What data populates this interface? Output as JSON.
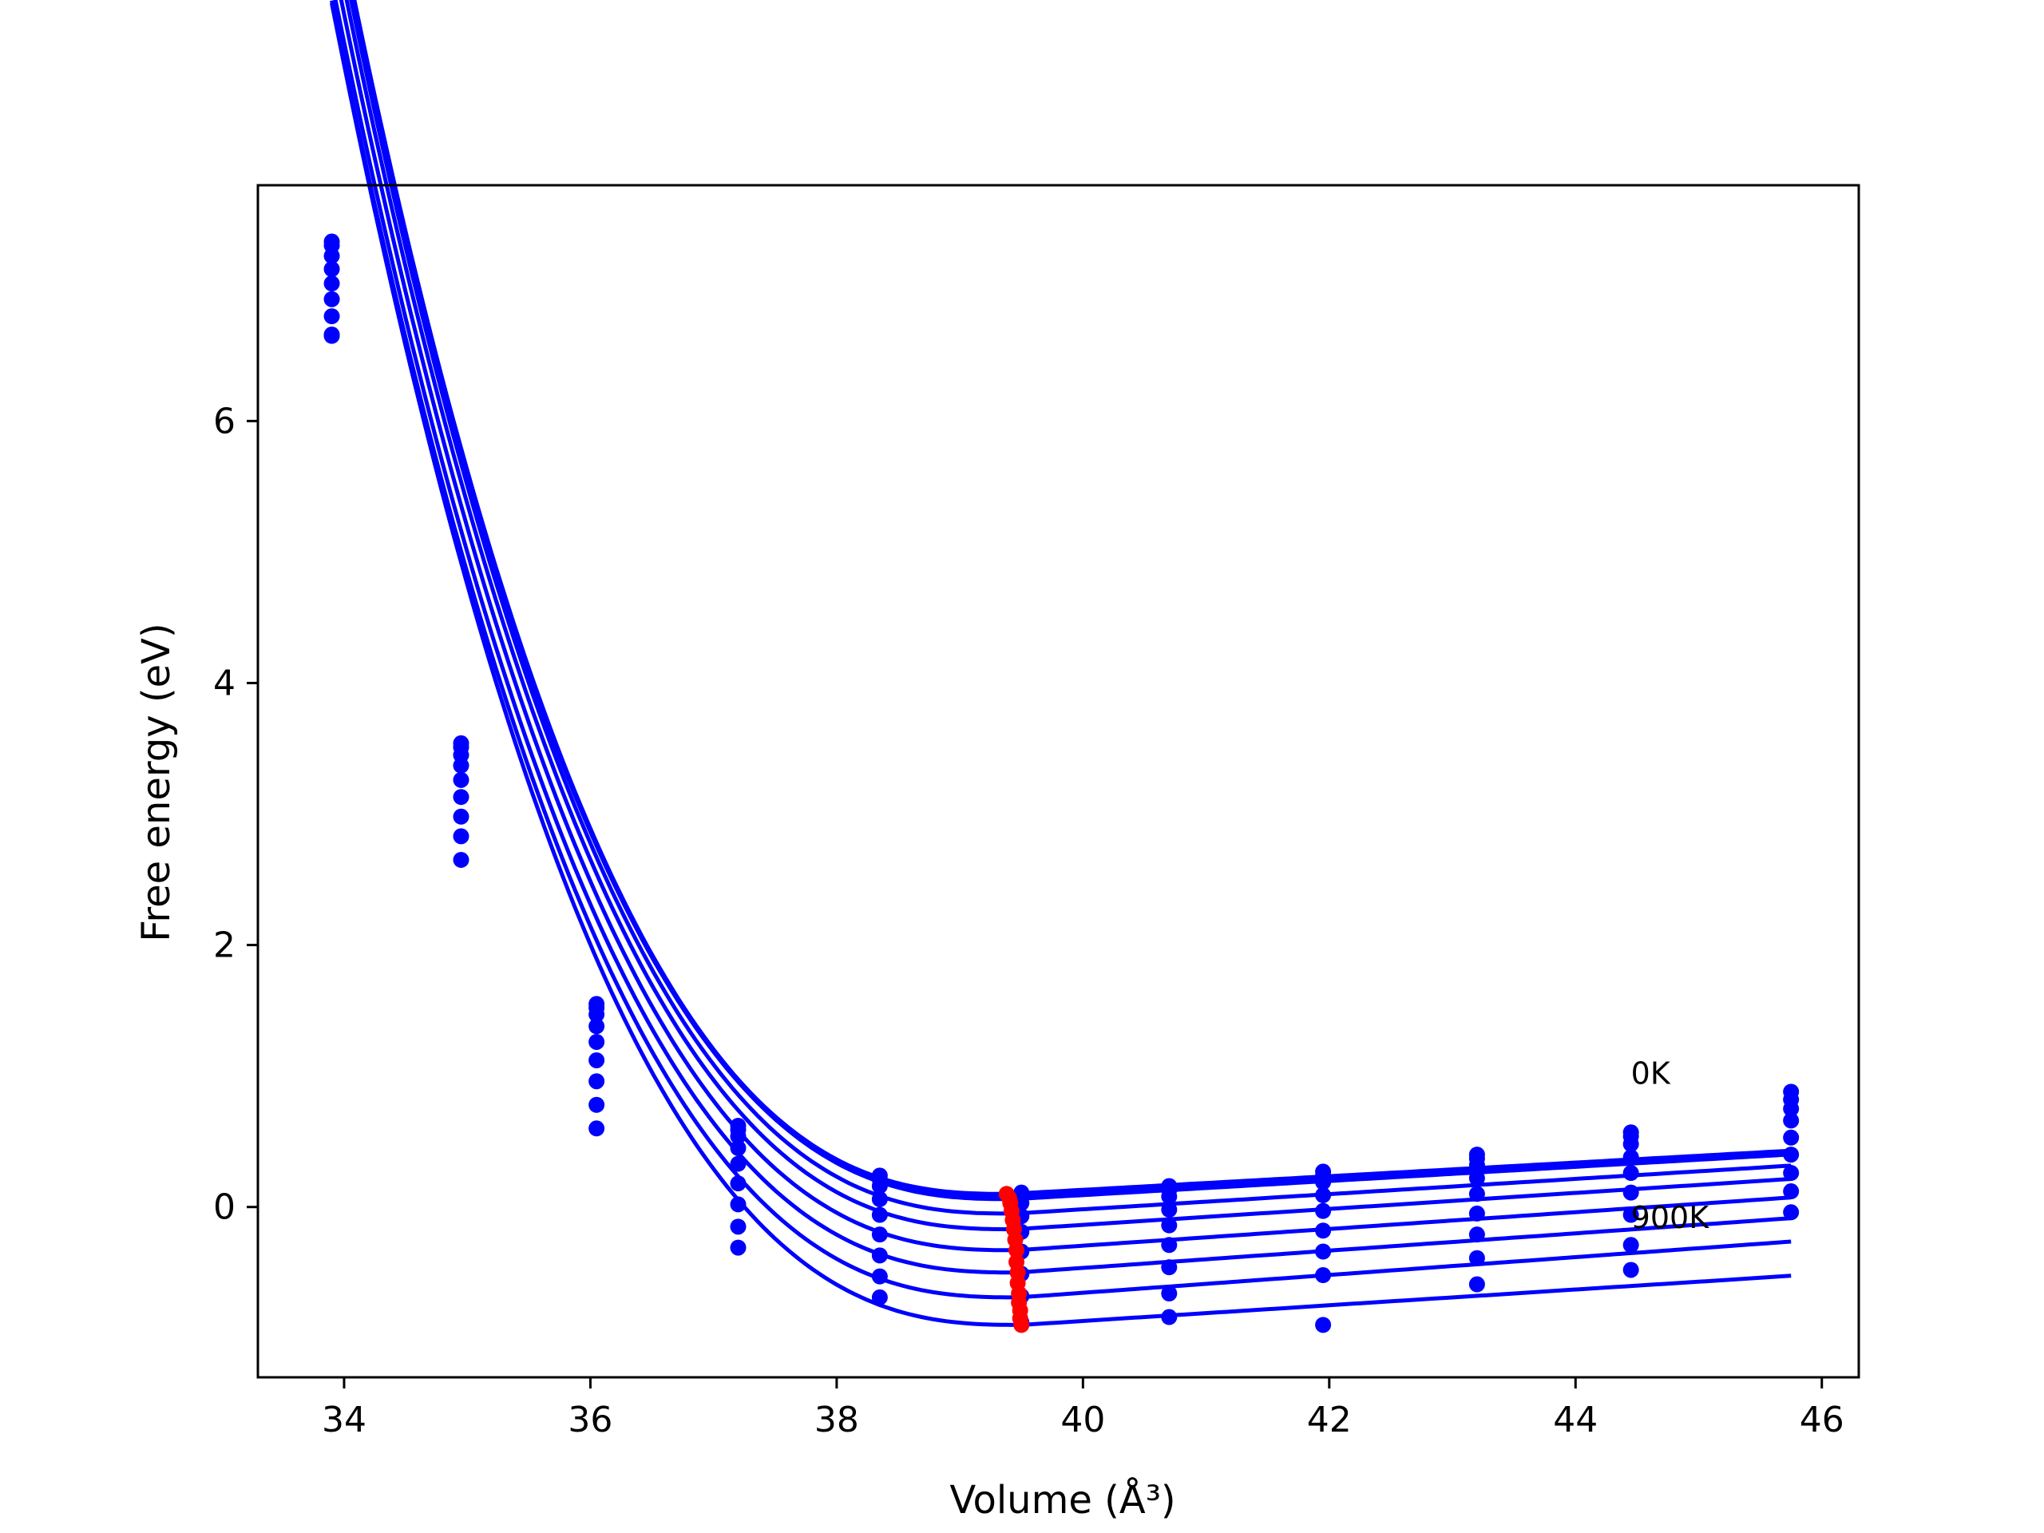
{
  "chart_data": {
    "type": "line",
    "title": "",
    "xlabel": "Volume (Å³)",
    "ylabel": "Free energy (eV)",
    "xlim": [
      33.3,
      46.3
    ],
    "ylim": [
      -1.3,
      7.8
    ],
    "xticks": [
      "34",
      "36",
      "38",
      "40",
      "42",
      "44",
      "46"
    ],
    "yticks": [
      "0",
      "2",
      "4",
      "6"
    ],
    "grid": false,
    "legend": "none",
    "colors": {
      "fit": "#0000ff",
      "points": "#0000ff",
      "minima": "#ff0000",
      "frame": "#000000"
    },
    "annotations": [
      "0K",
      "900K"
    ],
    "volumes": [
      33.9,
      34.95,
      36.05,
      37.2,
      38.35,
      39.5,
      40.7,
      41.95,
      43.2,
      44.45,
      45.75
    ],
    "series": [
      {
        "x": [
          33.9,
          34.95,
          36.05,
          37.2,
          38.35,
          39.5,
          40.7,
          41.95,
          43.2,
          44.45,
          45.75
        ],
        "y": [
          7.37,
          3.54,
          1.55,
          0.62,
          0.24,
          0.11,
          0.16,
          0.27,
          0.4,
          0.57,
          0.88
        ]
      },
      {
        "x": [
          33.9,
          34.95,
          36.05,
          37.2,
          38.35,
          39.5,
          40.7,
          41.95,
          43.2,
          44.45,
          45.75
        ],
        "y": [
          7.34,
          3.51,
          1.52,
          0.59,
          0.21,
          0.08,
          0.13,
          0.24,
          0.37,
          0.54,
          0.82
        ]
      },
      {
        "x": [
          33.9,
          34.95,
          36.05,
          37.2,
          38.35,
          39.5,
          40.7,
          41.95,
          43.2,
          44.45,
          45.75
        ],
        "y": [
          7.26,
          3.45,
          1.47,
          0.54,
          0.16,
          0.03,
          0.08,
          0.19,
          0.32,
          0.48,
          0.75
        ]
      },
      {
        "x": [
          33.9,
          34.95,
          36.05,
          37.2,
          38.35,
          39.5,
          40.7,
          41.95,
          43.2,
          44.45,
          45.75
        ],
        "y": [
          7.16,
          3.37,
          1.38,
          0.45,
          0.06,
          -0.07,
          -0.02,
          0.09,
          0.22,
          0.38,
          0.66
        ]
      },
      {
        "x": [
          33.9,
          34.95,
          36.05,
          37.2,
          38.35,
          39.5,
          40.7,
          41.95,
          43.2,
          44.45,
          45.75
        ],
        "y": [
          7.05,
          3.26,
          1.26,
          0.33,
          -0.06,
          -0.19,
          -0.14,
          -0.03,
          0.1,
          0.26,
          0.53
        ]
      },
      {
        "x": [
          33.9,
          34.95,
          36.05,
          37.2,
          38.35,
          39.5,
          40.7,
          41.95,
          43.2,
          44.45,
          45.75
        ],
        "y": [
          6.93,
          3.13,
          1.12,
          0.18,
          -0.21,
          -0.34,
          -0.29,
          -0.18,
          -0.05,
          0.11,
          0.4
        ]
      },
      {
        "x": [
          33.9,
          34.95,
          36.05,
          37.2,
          38.35,
          39.5,
          40.7,
          41.95,
          43.2,
          44.45,
          45.75
        ],
        "y": [
          6.8,
          2.98,
          0.96,
          0.02,
          -0.37,
          -0.51,
          -0.46,
          -0.34,
          -0.21,
          -0.06,
          0.26
        ]
      },
      {
        "x": [
          33.9,
          34.95,
          36.05,
          37.2,
          38.35,
          39.5,
          40.7,
          41.95,
          43.2,
          44.45,
          45.75
        ],
        "y": [
          6.66,
          2.83,
          0.78,
          -0.15,
          -0.53,
          -0.68,
          -0.66,
          -0.52,
          -0.39,
          -0.29,
          0.12
        ]
      },
      {
        "x": [
          33.9,
          34.95,
          36.05,
          37.2,
          38.35,
          39.5,
          40.7,
          41.95,
          43.2,
          44.45,
          45.75
        ],
        "y": [
          6.65,
          2.65,
          0.6,
          -0.31,
          -0.69,
          -0.88,
          -0.84,
          -0.9,
          -0.59,
          -0.48,
          -0.04
        ]
      }
    ],
    "fit_curves": [
      {
        "E0": 0.1,
        "V0": 39.4,
        "A": 0.108,
        "p": 2.65,
        "s": 0.052
      },
      {
        "E0": 0.08,
        "V0": 39.42,
        "A": 0.108,
        "p": 2.65,
        "s": 0.052
      },
      {
        "E0": 0.06,
        "V0": 39.43,
        "A": 0.107,
        "p": 2.65,
        "s": 0.054
      },
      {
        "E0": -0.05,
        "V0": 39.44,
        "A": 0.107,
        "p": 2.65,
        "s": 0.058
      },
      {
        "E0": -0.17,
        "V0": 39.45,
        "A": 0.106,
        "p": 2.65,
        "s": 0.061
      },
      {
        "E0": -0.33,
        "V0": 39.46,
        "A": 0.105,
        "p": 2.65,
        "s": 0.064
      },
      {
        "E0": -0.5,
        "V0": 39.47,
        "A": 0.104,
        "p": 2.65,
        "s": 0.066
      },
      {
        "E0": -0.69,
        "V0": 39.48,
        "A": 0.104,
        "p": 2.65,
        "s": 0.068
      },
      {
        "E0": -0.9,
        "V0": 39.5,
        "A": 0.105,
        "p": 2.65,
        "s": 0.06
      }
    ],
    "minima": {
      "x": [
        39.38,
        39.4,
        39.41,
        39.42,
        39.43,
        39.44,
        39.45,
        39.46,
        39.46,
        39.47,
        39.47,
        39.48,
        39.48,
        39.49,
        39.49,
        39.5
      ],
      "y": [
        0.1,
        0.07,
        0.03,
        -0.03,
        -0.1,
        -0.17,
        -0.25,
        -0.33,
        -0.42,
        -0.5,
        -0.58,
        -0.66,
        -0.73,
        -0.79,
        -0.85,
        -0.9
      ]
    },
    "labels": {
      "top": {
        "text": "0K",
        "x": 44.45,
        "y": 0.94
      },
      "bottom": {
        "text": "900K",
        "x": 44.45,
        "y": -0.16
      }
    }
  }
}
